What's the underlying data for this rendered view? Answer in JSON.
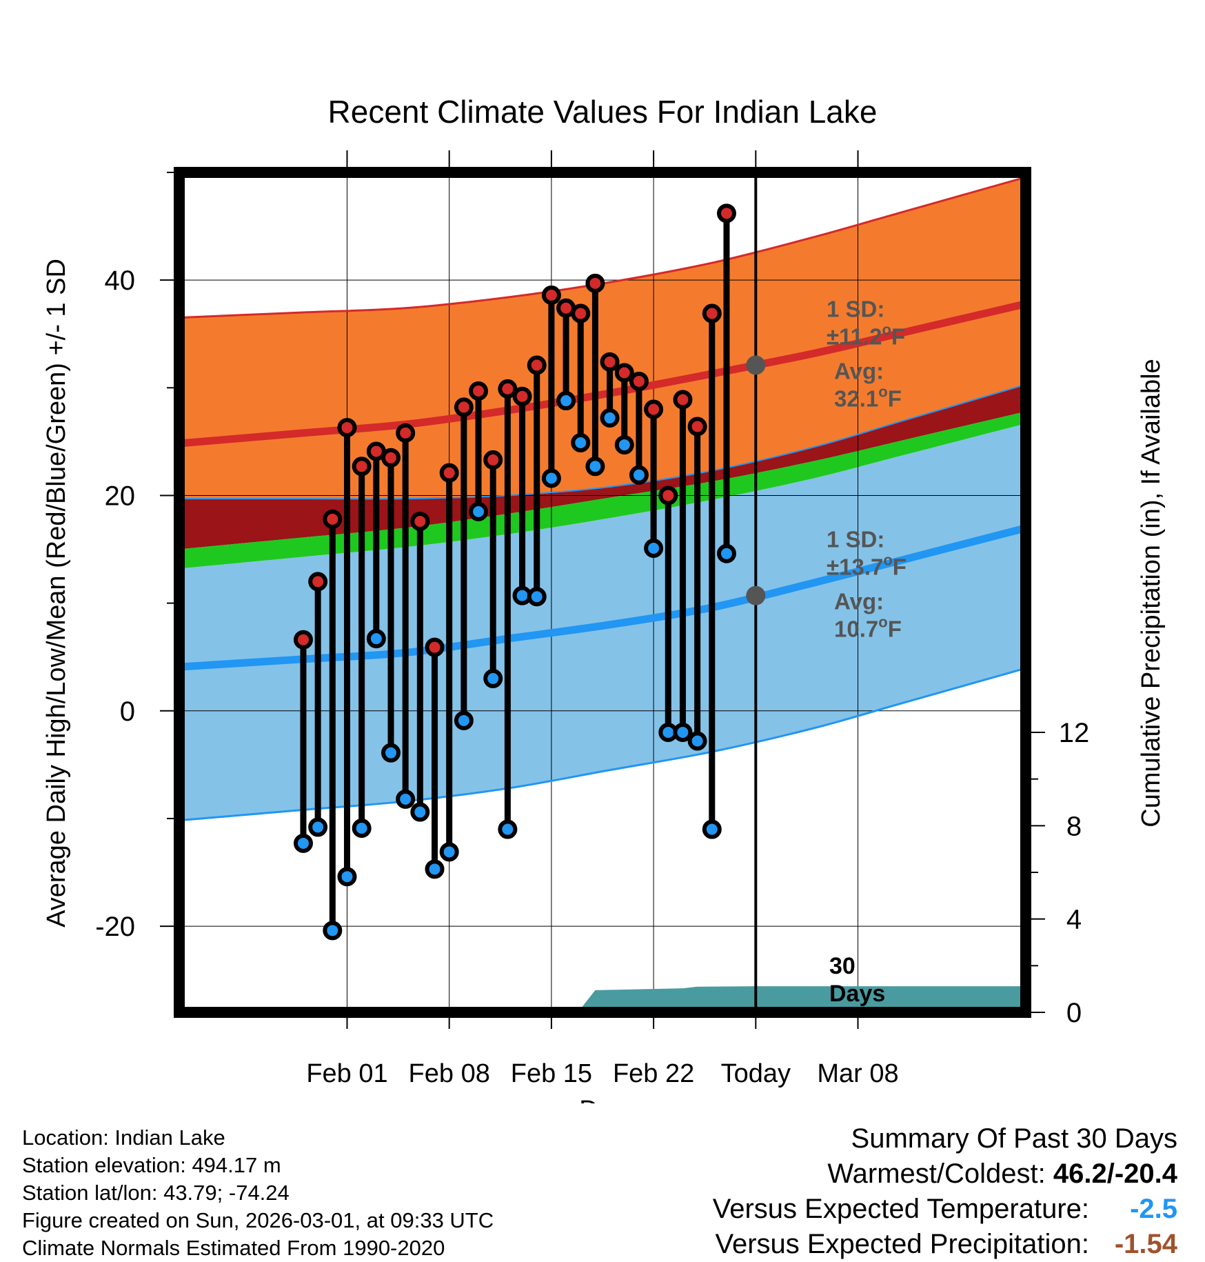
{
  "chart_data": {
    "type": "line",
    "title": "Recent Climate Values For Indian Lake",
    "xlabel": "Day",
    "ylabel": "Average Daily High/Low/Mean (Red/Blue/Green) +/- 1 SD",
    "y2label": "Cumulative Precipitation (in), If Available",
    "ylim": [
      -28,
      50
    ],
    "y2lim": [
      0,
      36
    ],
    "xlim": [
      -7.5,
      50.5
    ],
    "x_units": "days since Jan 28",
    "x_tick_labels": [
      {
        "x": 4,
        "label": "Feb 01"
      },
      {
        "x": 11,
        "label": "Feb 08"
      },
      {
        "x": 18,
        "label": "Feb 15"
      },
      {
        "x": 25,
        "label": "Feb 22"
      },
      {
        "x": 32,
        "label": "Today"
      },
      {
        "x": 39,
        "label": "Mar 08"
      }
    ],
    "y_ticks": [
      -20,
      0,
      20,
      40
    ],
    "y2_ticks": [
      0,
      4,
      8,
      12
    ],
    "normals": {
      "x": [
        1,
        8,
        15,
        22,
        29,
        36,
        42
      ],
      "high_mean": [
        25.8,
        26.6,
        27.9,
        29.5,
        31.3,
        33.2,
        35.1
      ],
      "high_upper": [
        37.0,
        37.4,
        38.4,
        39.8,
        41.6,
        44.0,
        46.3
      ],
      "high_lower": [
        19.7,
        19.7,
        20.0,
        20.8,
        22.3,
        24.5,
        26.9
      ],
      "mean_upper": [
        16.1,
        17.0,
        18.3,
        19.8,
        21.3,
        23.2,
        25.1
      ],
      "mean_lower": [
        14.3,
        15.2,
        16.4,
        17.9,
        19.6,
        21.6,
        23.7
      ],
      "low_mean": [
        4.8,
        5.4,
        6.7,
        8.0,
        9.6,
        11.9,
        14.0
      ],
      "low_upper": [
        14.3,
        15.2,
        16.4,
        17.9,
        19.6,
        21.6,
        23.7
      ],
      "low_lower": [
        -9.2,
        -8.4,
        -7.2,
        -5.5,
        -3.8,
        -1.6,
        0.7
      ]
    },
    "series": [
      {
        "name": "Daily High",
        "color": "#d42a2a",
        "x": [
          1,
          2,
          3,
          4,
          5,
          6,
          7,
          8,
          9,
          10,
          11,
          12,
          13,
          14,
          15,
          16,
          17,
          18,
          19,
          20,
          21,
          22,
          23,
          24,
          25,
          26,
          27,
          28,
          29,
          30,
          31
        ],
        "values": [
          6.6,
          12.0,
          17.8,
          26.3,
          22.7,
          24.1,
          23.5,
          25.8,
          17.6,
          5.9,
          22.1,
          28.2,
          29.7,
          23.3,
          29.9,
          29.2,
          32.1,
          38.6,
          37.4,
          36.9,
          39.7,
          32.4,
          31.4,
          30.6,
          28.0,
          20.0,
          28.9,
          26.4,
          36.9,
          46.2,
          null
        ],
        "values_note": "high for each day; last day (x=31) has no reading"
      },
      {
        "name": "Daily Low",
        "color": "#2196f3",
        "x": [
          1,
          2,
          3,
          4,
          5,
          6,
          7,
          8,
          9,
          10,
          11,
          12,
          13,
          14,
          15,
          16,
          17,
          18,
          19,
          20,
          21,
          22,
          23,
          24,
          25,
          26,
          27,
          28,
          29,
          30
        ],
        "values": [
          -12.3,
          -10.8,
          -20.4,
          -15.4,
          -10.9,
          6.7,
          -3.9,
          -8.2,
          -9.4,
          -14.7,
          -13.1,
          -0.9,
          18.5,
          3.0,
          -11.0,
          10.7,
          10.6,
          21.6,
          28.8,
          24.9,
          22.7,
          27.2,
          24.7,
          21.9,
          15.1,
          -2.0,
          -2.0,
          -2.8,
          -11.0,
          14.6
        ]
      },
      {
        "name": "Cumulative Precipitation",
        "color": "#4a9ba0",
        "x": [
          10,
          11,
          12,
          13,
          17,
          20,
          21,
          24,
          27,
          28,
          32,
          43
        ],
        "values": [
          0.0,
          0.05,
          0.08,
          0.1,
          0.12,
          0.15,
          0.95,
          0.99,
          1.03,
          1.1,
          1.12,
          1.12
        ]
      }
    ],
    "annotations": {
      "high_sd_label": "1 SD:",
      "high_sd_value": "±11.2",
      "high_avg_label": "Avg:",
      "high_avg_value": "32.1",
      "high_avg": 32.1,
      "low_sd_label": "1 SD:",
      "low_sd_value": "±13.7",
      "low_avg_label": "Avg:",
      "low_avg_value": "10.7",
      "low_avg": 10.7,
      "degree_unit": "F",
      "degree_symbol": "o",
      "window_label_1": "30",
      "window_label_2": "Days"
    }
  },
  "footer": {
    "location": "Location: Indian Lake",
    "elevation": "Station elevation: 494.17 m",
    "latlon": "Station lat/lon: 43.79; -74.24",
    "created": "Figure created on Sun, 2026-03-01, at 09:33 UTC",
    "normals": "Climate Normals Estimated From 1990-2020"
  },
  "summary": {
    "title": "Summary Of Past 30 Days",
    "warmest_label": "Warmest/Coldest:",
    "warmest_value": "46.2/-20.4",
    "temp_label": "Versus Expected Temperature:",
    "temp_value": "-2.5",
    "temp_color": "#2196f3",
    "precip_label": "Versus Expected Precipitation:",
    "precip_value": "-1.54",
    "precip_color": "#a0522d"
  }
}
